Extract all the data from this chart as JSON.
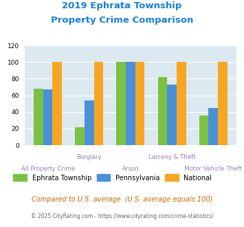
{
  "title_line1": "2019 Ephrata Township",
  "title_line2": "Property Crime Comparison",
  "title_color": "#1a7fd4",
  "categories": [
    "All Property Crime",
    "Burglary",
    "Arson",
    "Larceny & Theft",
    "Motor Vehicle Theft"
  ],
  "ephrata": [
    68,
    22,
    100,
    82,
    36
  ],
  "pennsylvania": [
    67,
    54,
    100,
    73,
    45
  ],
  "national": [
    100,
    100,
    100,
    100,
    100
  ],
  "ephrata_color": "#7bc143",
  "pennsylvania_color": "#4a90d9",
  "national_color": "#f5a623",
  "bg_color": "#dce9f0",
  "ylim": [
    0,
    120
  ],
  "yticks": [
    0,
    20,
    40,
    60,
    80,
    100,
    120
  ],
  "xlabel_color": "#9b7cb6",
  "legend_labels": [
    "Ephrata Township",
    "Pennsylvania",
    "National"
  ],
  "footnote1": "Compared to U.S. average. (U.S. average equals 100)",
  "footnote1_color": "#cc6600",
  "footnote2_prefix": "© 2025 CityRating.com - ",
  "footnote2_link": "https://www.cityrating.com/crime-statistics/",
  "footnote2_color": "#666666",
  "footnote2_link_color": "#1a7fd4"
}
